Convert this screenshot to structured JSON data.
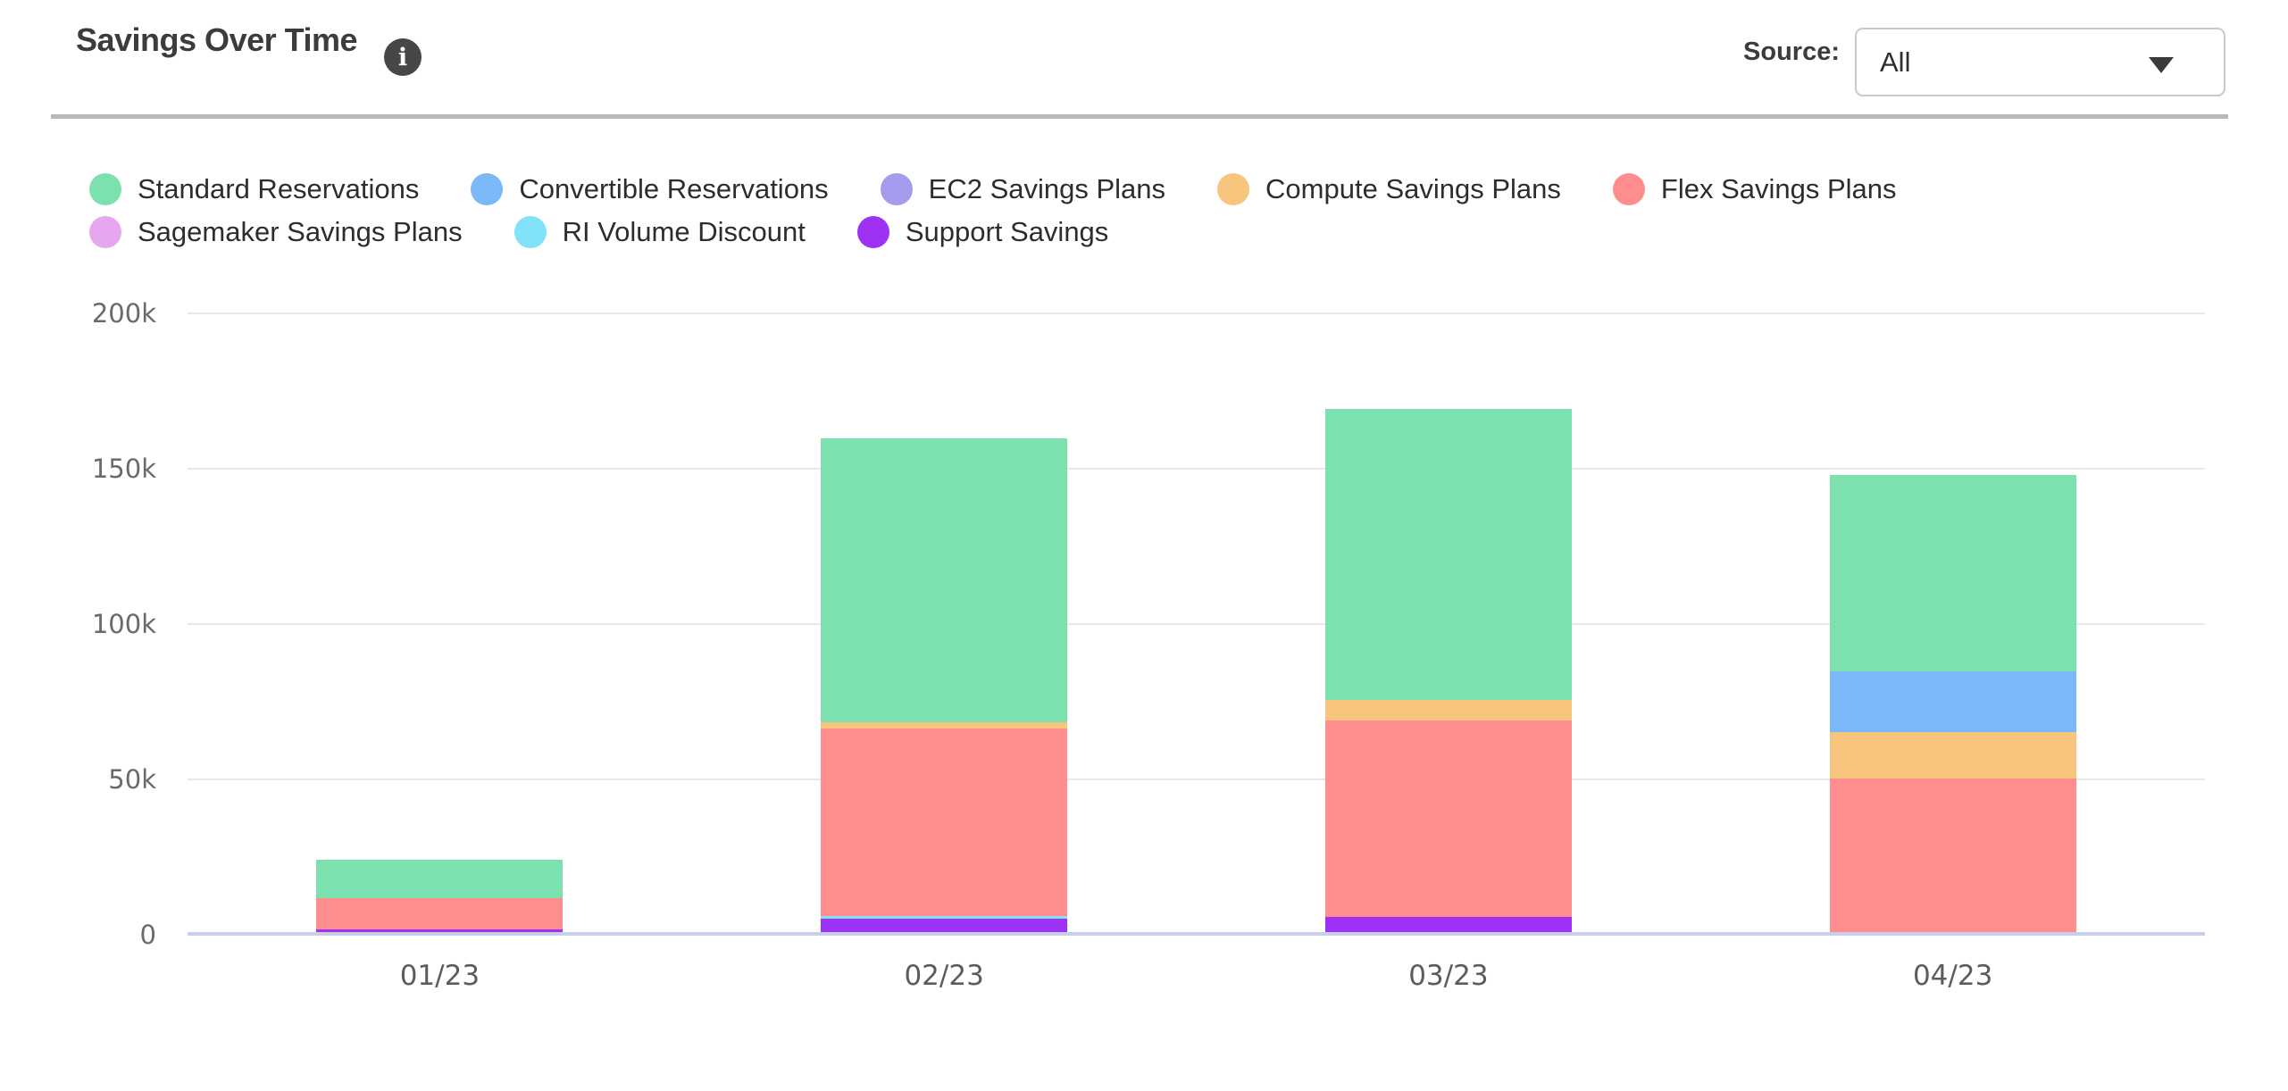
{
  "header": {
    "title": "Savings Over Time",
    "info_icon": "i",
    "source_label": "Source:",
    "source_value": "All"
  },
  "chart_data": {
    "type": "bar",
    "stacked": true,
    "title": "Savings Over Time",
    "categories": [
      "01/23",
      "02/23",
      "03/23",
      "04/23"
    ],
    "series": [
      {
        "key": "standard_reservations",
        "name": "Standard Reservations",
        "color": "#7CE0AF",
        "values": [
          12400,
          91500,
          93700,
          63300
        ]
      },
      {
        "key": "convertible_reservations",
        "name": "Convertible Reservations",
        "color": "#7AB8F8",
        "values": [
          0,
          0,
          0,
          19500
        ]
      },
      {
        "key": "ec2_savings_plans",
        "name": "EC2 Savings Plans",
        "color": "#A29BEE",
        "values": [
          0,
          0,
          0,
          0
        ]
      },
      {
        "key": "compute_savings_plans",
        "name": "Compute Savings Plans",
        "color": "#F8C57E",
        "values": [
          0,
          2000,
          6700,
          15000
        ]
      },
      {
        "key": "flex_savings_plans",
        "name": "Flex Savings Plans",
        "color": "#FF8D8D",
        "values": [
          10000,
          60400,
          63000,
          49400
        ]
      },
      {
        "key": "sagemaker_savings_plans",
        "name": "Sagemaker Savings Plans",
        "color": "#E7A7EE",
        "values": [
          0,
          0,
          0,
          0
        ]
      },
      {
        "key": "ri_volume_discount",
        "name": "RI Volume Discount",
        "color": "#82E2F8",
        "values": [
          0,
          700,
          0,
          0
        ]
      },
      {
        "key": "support_savings",
        "name": "Support Savings",
        "color": "#9D32F5",
        "values": [
          1000,
          4400,
          5000,
          0
        ]
      }
    ],
    "stack_order": [
      "support_savings",
      "ri_volume_discount",
      "sagemaker_savings_plans",
      "flex_savings_plans",
      "compute_savings_plans",
      "ec2_savings_plans",
      "convertible_reservations",
      "standard_reservations"
    ],
    "totals": [
      23400,
      159000,
      168400,
      147200
    ],
    "ylim": [
      0,
      200000
    ],
    "yticks": [
      {
        "value": 0,
        "label": "0"
      },
      {
        "value": 50000,
        "label": "50k"
      },
      {
        "value": 100000,
        "label": "100k"
      },
      {
        "value": 150000,
        "label": "150k"
      },
      {
        "value": 200000,
        "label": "200k"
      }
    ],
    "legend_position": "top",
    "legend_rows": [
      5,
      3
    ],
    "grid": true,
    "grid_color": "#e7e7e7",
    "axis_color": "#c6cee9"
  }
}
